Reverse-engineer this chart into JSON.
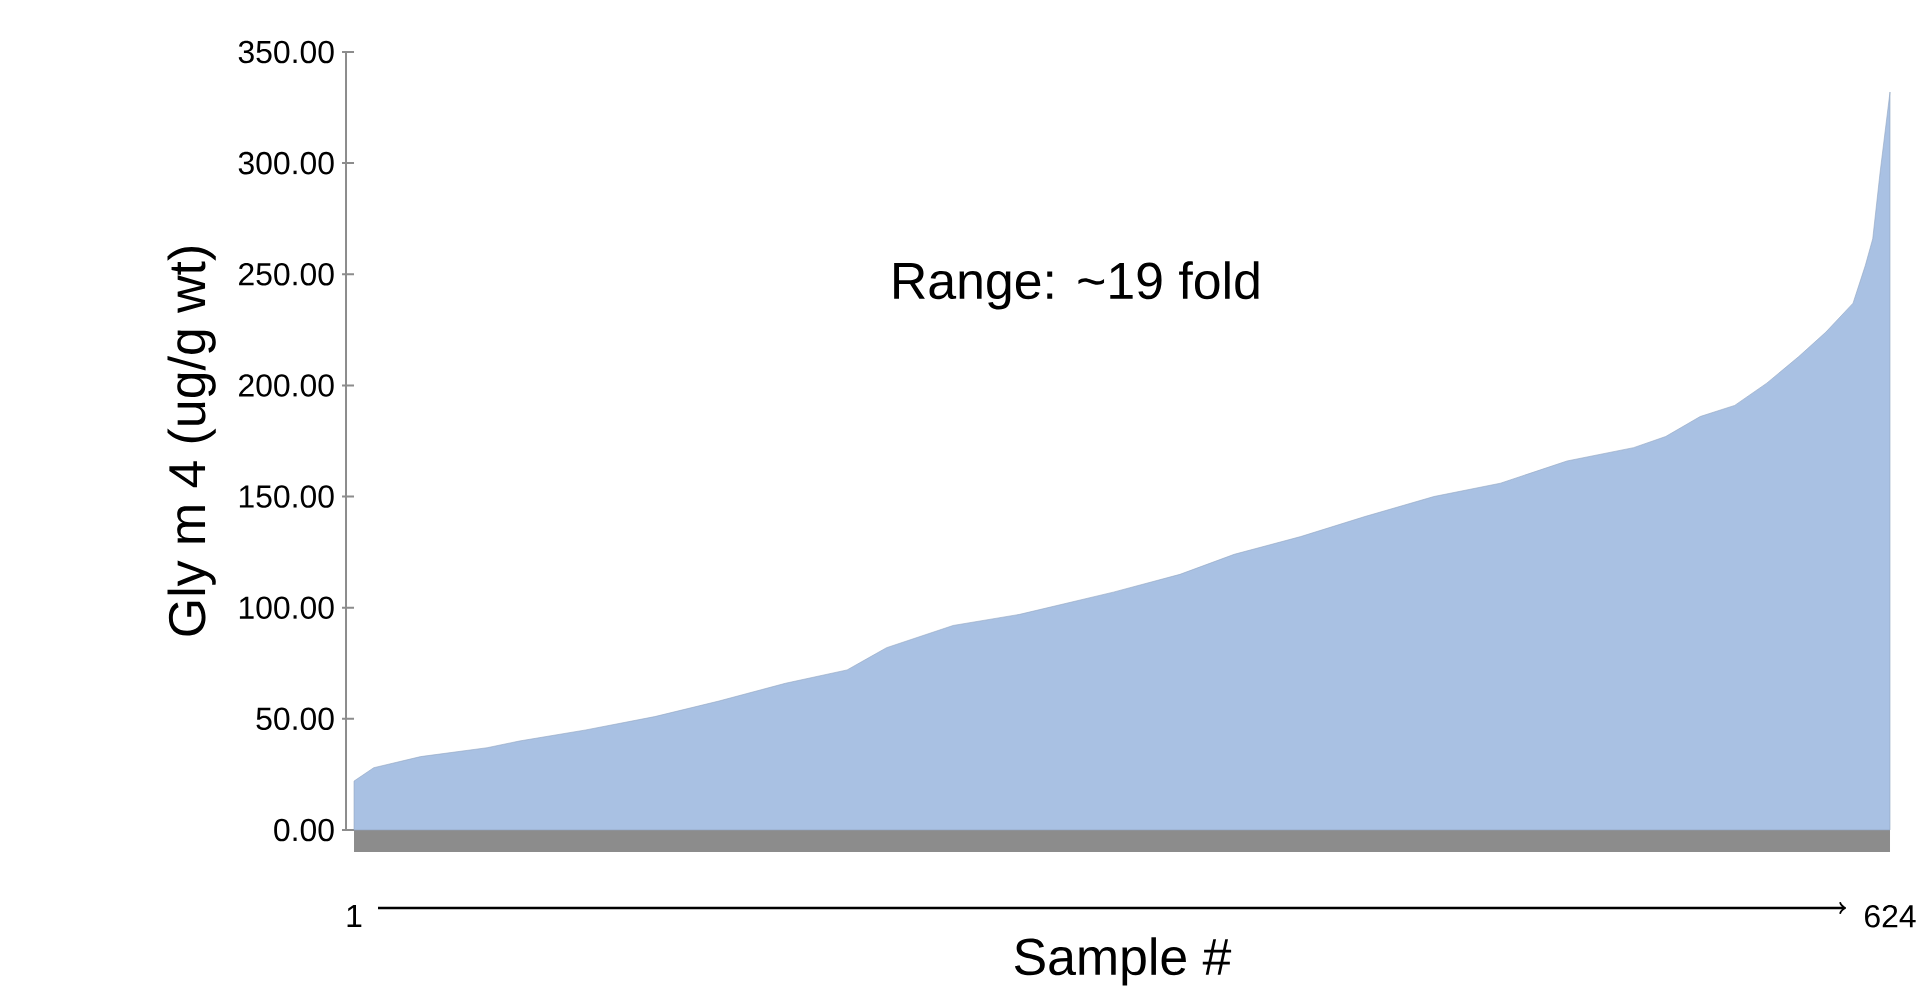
{
  "chart_data": {
    "type": "area",
    "xlabel": "Sample #",
    "ylabel": "Gly m 4 (ug/g wt)",
    "annotations": [
      "Range: ~19 fold"
    ],
    "x": [
      1,
      9,
      28,
      55,
      68,
      95,
      123,
      149,
      176,
      201,
      209,
      217,
      244,
      271,
      309,
      336,
      358,
      385,
      411,
      439,
      466,
      493,
      520,
      533,
      547,
      561,
      574,
      587,
      598,
      609,
      614,
      617,
      620,
      624
    ],
    "series": [
      {
        "color": "#a9c1e3",
        "values": [
          22,
          28,
          33,
          37,
          40,
          45,
          51,
          58,
          66,
          72,
          77,
          82,
          92,
          97,
          107,
          115,
          124,
          132,
          141,
          150,
          156,
          166,
          172,
          177,
          186,
          191,
          201,
          213,
          224,
          237,
          254,
          266,
          296,
          332
        ]
      }
    ],
    "xlim": [
      1,
      624
    ],
    "xticks": [
      {
        "value": 1,
        "label": "1"
      },
      {
        "value": 624,
        "label": "624"
      }
    ],
    "ylim": [
      0,
      350
    ],
    "yticks": [
      {
        "value": 0,
        "label": "0.00"
      },
      {
        "value": 50,
        "label": "50.00"
      },
      {
        "value": 100,
        "label": "100.00"
      },
      {
        "value": 150,
        "label": "150.00"
      },
      {
        "value": 200,
        "label": "200.00"
      },
      {
        "value": 250,
        "label": "250.00"
      },
      {
        "value": 300,
        "label": "300.00"
      },
      {
        "value": 350,
        "label": "350.00"
      }
    ],
    "grid": false
  }
}
